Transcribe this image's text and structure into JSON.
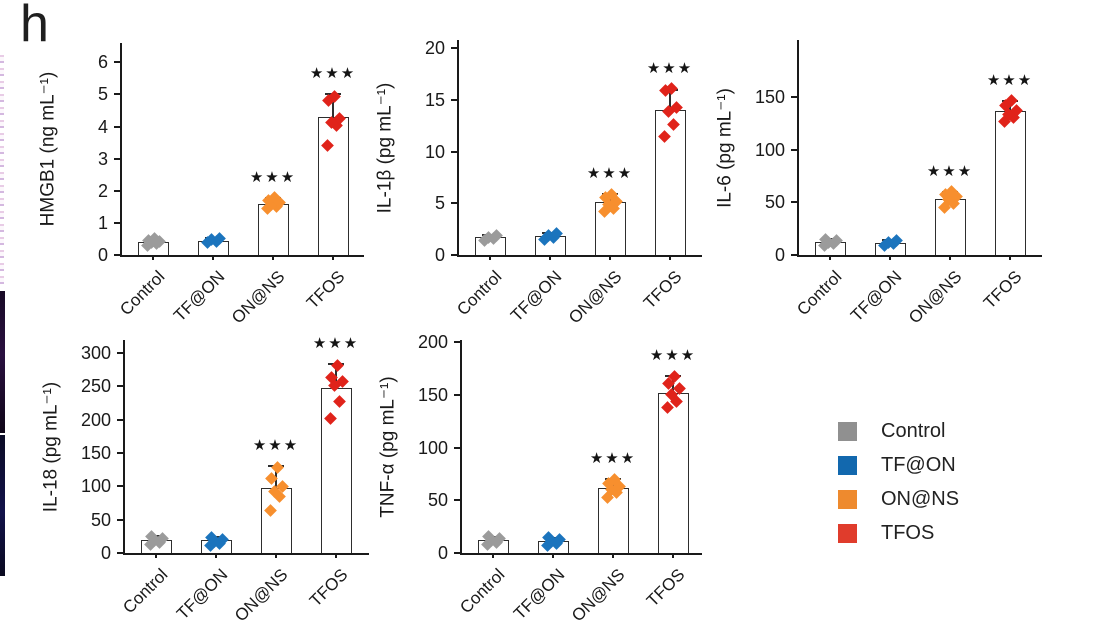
{
  "panel_label": "h",
  "categories": [
    "Control",
    "TF@ON",
    "ON@NS",
    "TFOS"
  ],
  "group_colors": [
    "#9b9b9b",
    "#1b74bd",
    "#f78f2e",
    "#e0231a"
  ],
  "legend": {
    "position": "bottom-right",
    "items": [
      {
        "label": "Control",
        "color": "#909090"
      },
      {
        "label": "TF@ON",
        "color": "#1268ae"
      },
      {
        "label": "ON@NS",
        "color": "#ee8a2e"
      },
      {
        "label": "TFOS",
        "color": "#e03c2c"
      }
    ]
  },
  "significance_marker": "***",
  "chart_data": [
    {
      "type": "bar",
      "title": "",
      "ylabel": "HMGB1 (ng mL⁻¹)",
      "xlabel": "",
      "categories": [
        "Control",
        "TF@ON",
        "ON@NS",
        "TFOS"
      ],
      "ylim": [
        0,
        6
      ],
      "yticks": [
        0,
        1,
        2,
        3,
        4,
        5,
        6
      ],
      "values": [
        0.4,
        0.45,
        1.6,
        4.3
      ],
      "errors": [
        0.1,
        0.08,
        0.18,
        0.7
      ],
      "points": [
        [
          0.3,
          0.35,
          0.38,
          0.42,
          0.46,
          0.5
        ],
        [
          0.38,
          0.43,
          0.47,
          0.52
        ],
        [
          1.45,
          1.52,
          1.58,
          1.63,
          1.7,
          1.78
        ],
        [
          3.42,
          4.02,
          4.12,
          4.25,
          4.8,
          4.95
        ]
      ],
      "sig": [
        "",
        "",
        "***",
        "***"
      ]
    },
    {
      "type": "bar",
      "title": "",
      "ylabel": "IL-1β (pg mL⁻¹)",
      "xlabel": "",
      "categories": [
        "Control",
        "TF@ON",
        "ON@NS",
        "TFOS"
      ],
      "ylim": [
        0,
        20
      ],
      "yticks": [
        0,
        5,
        10,
        15,
        20
      ],
      "values": [
        1.7,
        1.8,
        5.1,
        14.0
      ],
      "errors": [
        0.2,
        0.3,
        0.8,
        2.0
      ],
      "points": [
        [
          1.45,
          1.6,
          1.7,
          1.85
        ],
        [
          1.5,
          1.7,
          1.9,
          2.1
        ],
        [
          4.2,
          4.5,
          4.9,
          5.2,
          5.6,
          5.9
        ],
        [
          11.5,
          12.6,
          13.9,
          14.3,
          15.9,
          16.1
        ]
      ],
      "sig": [
        "",
        "",
        "***",
        "***"
      ]
    },
    {
      "type": "bar",
      "title": "",
      "ylabel": "IL-6 (pg mL⁻¹)",
      "xlabel": "",
      "categories": [
        "Control",
        "TF@ON",
        "ON@NS",
        "TFOS"
      ],
      "ylim": [
        0,
        175
      ],
      "yticks": [
        0,
        50,
        100,
        150
      ],
      "values": [
        12,
        11,
        53,
        137
      ],
      "errors": [
        3,
        3,
        7,
        10
      ],
      "points": [
        [
          9,
          10.5,
          12,
          13.5,
          15
        ],
        [
          9,
          10.5,
          12,
          13.5
        ],
        [
          45,
          49,
          53,
          56,
          58,
          60
        ],
        [
          127,
          131,
          134,
          138,
          142,
          147
        ]
      ],
      "sig": [
        "",
        "",
        "***",
        "***"
      ]
    },
    {
      "type": "bar",
      "title": "",
      "ylabel": "IL-18 (pg mL⁻¹)",
      "xlabel": "",
      "categories": [
        "Control",
        "TF@ON",
        "ON@NS",
        "TFOS"
      ],
      "ylim": [
        0,
        300
      ],
      "yticks": [
        0,
        50,
        100,
        150,
        200,
        250,
        300
      ],
      "values": [
        20,
        19,
        98,
        248
      ],
      "errors": [
        5,
        5,
        32,
        35
      ],
      "points": [
        [
          13,
          16,
          19,
          22,
          25
        ],
        [
          12,
          15,
          18,
          21,
          24
        ],
        [
          64,
          85,
          92,
          100,
          112,
          128
        ],
        [
          202,
          227,
          252,
          258,
          264,
          282
        ]
      ],
      "sig": [
        "",
        "",
        "***",
        "***"
      ]
    },
    {
      "type": "bar",
      "title": "",
      "ylabel": "TNF-α (pg mL⁻¹)",
      "xlabel": "",
      "categories": [
        "Control",
        "TF@ON",
        "ON@NS",
        "TFOS"
      ],
      "ylim": [
        0,
        200
      ],
      "yticks": [
        0,
        50,
        100,
        150,
        200
      ],
      "values": [
        12,
        11,
        62,
        152
      ],
      "errors": [
        3,
        3,
        8,
        16
      ],
      "points": [
        [
          8,
          10,
          12,
          14,
          16
        ],
        [
          7,
          9,
          11,
          13,
          15
        ],
        [
          53,
          57,
          60,
          63,
          66,
          70
        ],
        [
          138,
          144,
          150,
          156,
          161,
          167
        ]
      ],
      "sig": [
        "",
        "",
        "***",
        "***"
      ]
    }
  ],
  "artifacts": {
    "left_strip_top_color": "#e3bfe0",
    "left_strip_mid_color": "#180a26",
    "left_strip_bottom_color": "#12124a"
  }
}
